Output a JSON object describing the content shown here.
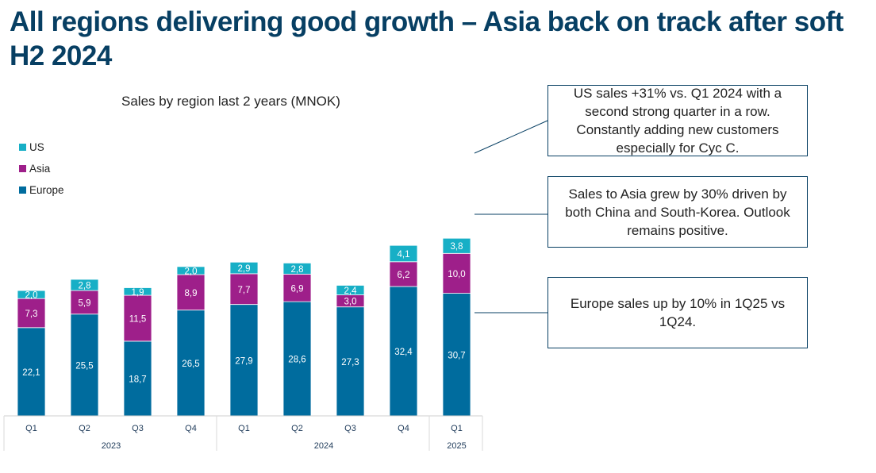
{
  "slide": {
    "title": "All regions delivering good growth – Asia back on track after soft H2 2024"
  },
  "chart_data": {
    "type": "bar",
    "stacked": true,
    "title": "Sales by region last 2 years (MNOK)",
    "categories": [
      "Q1",
      "Q2",
      "Q3",
      "Q4",
      "Q1",
      "Q2",
      "Q3",
      "Q4",
      "Q1"
    ],
    "category_groups": [
      {
        "label": "2023",
        "count": 4
      },
      {
        "label": "2024",
        "count": 4
      },
      {
        "label": "2025",
        "count": 1
      }
    ],
    "series": [
      {
        "name": "Europe",
        "color": "#006C9E",
        "values": [
          22.1,
          25.5,
          18.7,
          26.5,
          27.9,
          28.6,
          27.3,
          32.4,
          30.7
        ],
        "labels": [
          "22,1",
          "25,5",
          "18,7",
          "26,5",
          "27,9",
          "28,6",
          "27,3",
          "32,4",
          "30,7"
        ]
      },
      {
        "name": "Asia",
        "color": "#9E1F8A",
        "values": [
          7.3,
          5.9,
          11.5,
          8.9,
          7.7,
          6.9,
          3.0,
          6.2,
          10.0
        ],
        "labels": [
          "7,3",
          "5,9",
          "11,5",
          "8,9",
          "7,7",
          "6,9",
          "3,0",
          "6,2",
          "10,0"
        ]
      },
      {
        "name": "US",
        "color": "#17AFC6",
        "values": [
          2.0,
          2.8,
          1.9,
          2.0,
          2.9,
          2.8,
          2.4,
          4.1,
          3.8
        ],
        "labels": [
          "2,0",
          "2,8",
          "1,9",
          "2,0",
          "2,9",
          "2,8",
          "2,4",
          "4,1",
          "3,8"
        ]
      }
    ],
    "legend": {
      "position": "top-left",
      "order": [
        "US",
        "Asia",
        "Europe"
      ]
    },
    "grid": false
  },
  "callouts": [
    {
      "text": "US sales +31% vs. Q1 2024 with a second strong quarter in a row. Constantly adding new customers especially for Cyc C.",
      "target_series": "US"
    },
    {
      "text": "Sales to Asia grew by 30% driven by both China and South-Korea. Outlook remains positive.",
      "target_series": "Asia"
    },
    {
      "text": "Europe sales up by 10% in 1Q25 vs 1Q24.",
      "target_series": "Europe"
    }
  ]
}
